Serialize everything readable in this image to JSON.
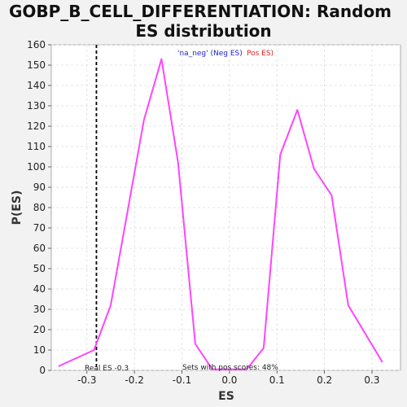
{
  "chart_data": {
    "type": "line",
    "title": "GOBP_B_CELL_DIFFERENTIATION: Random ES distribution",
    "title_lines": [
      "GOBP_B_CELL_DIFFERENTIATION: Random",
      "ES distribution"
    ],
    "xlabel": "ES",
    "ylabel": "P(ES)",
    "xlim": [
      -0.375,
      0.36
    ],
    "ylim": [
      0,
      160
    ],
    "xticks": [
      -0.3,
      -0.2,
      -0.1,
      0.0,
      0.1,
      0.2,
      0.3
    ],
    "xtick_labels": [
      "-0.3",
      "-0.2",
      "-0.1",
      "0.0",
      "0.1",
      "0.2",
      "0.3"
    ],
    "yticks": [
      0,
      10,
      20,
      30,
      40,
      50,
      60,
      70,
      80,
      90,
      100,
      110,
      120,
      130,
      140,
      150,
      160
    ],
    "ytick_labels": [
      "0",
      "10",
      "20",
      "30",
      "40",
      "50",
      "60",
      "70",
      "80",
      "90",
      "100",
      "110",
      "120",
      "130",
      "140",
      "150",
      "160"
    ],
    "grid": true,
    "series": [
      {
        "color": "#ff44ff",
        "x": [
          -0.36,
          -0.285,
          -0.25,
          -0.18,
          -0.143,
          -0.108,
          -0.072,
          -0.036,
          0.0,
          0.036,
          0.072,
          0.107,
          0.143,
          0.178,
          0.215,
          0.25,
          0.322
        ],
        "y": [
          2,
          10,
          32,
          123,
          153,
          102,
          13,
          0.5,
          0.5,
          0.5,
          11,
          106,
          128,
          99,
          86,
          32,
          4
        ]
      }
    ],
    "real_es": {
      "value": -0.28,
      "label": "Real ES -0.3",
      "color": "#000000"
    },
    "legend": {
      "placement": "top-center",
      "neg_label": "'na_neg' (Neg ES)",
      "neg_color": "#2222cc",
      "pos_label": "Pos ES)",
      "pos_color": "#dd2222"
    },
    "annotation": "Sets with pos scores: 48%"
  }
}
